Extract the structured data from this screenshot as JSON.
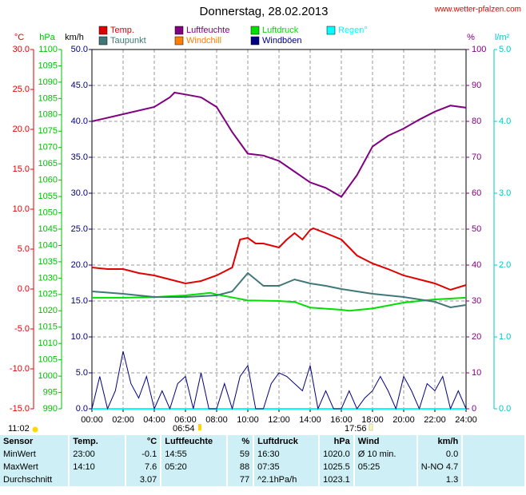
{
  "chart_data": {
    "type": "line",
    "title": "Donnerstag, 28.02.2013",
    "watermark": "www.wetter-pfalzen.com",
    "axes": [
      {
        "label": "°C",
        "color": "#e00000",
        "lim": [
          -15,
          30
        ],
        "ticks": [
          {
            "value": -15,
            "label": "-15.0"
          },
          {
            "value": -10,
            "label": "-10.0"
          },
          {
            "value": -5,
            "label": "-5.0"
          },
          {
            "value": 0,
            "label": "0.0"
          },
          {
            "value": 5,
            "label": "5.0"
          },
          {
            "value": 10,
            "label": "10.0"
          },
          {
            "value": 15,
            "label": "15.0"
          },
          {
            "value": 20,
            "label": "20.0"
          },
          {
            "value": 25,
            "label": "25.0"
          },
          {
            "value": 30,
            "label": "30.0"
          }
        ]
      },
      {
        "label": "hPa",
        "color": "#00c000",
        "lim": [
          990,
          1100
        ],
        "ticks": [
          990,
          995,
          1000,
          1005,
          1010,
          1015,
          1020,
          1025,
          1030,
          1035,
          1040,
          1045,
          1050,
          1055,
          1060,
          1065,
          1070,
          1075,
          1080,
          1085,
          1090,
          1095,
          1100
        ]
      },
      {
        "label": "km/h",
        "color": "#000080",
        "lim": [
          0,
          50
        ],
        "ticks": [
          {
            "value": 0,
            "label": "0.0"
          },
          {
            "value": 5,
            "label": "5.0"
          },
          {
            "value": 10,
            "label": "10.0"
          },
          {
            "value": 15,
            "label": "15.0"
          },
          {
            "value": 20,
            "label": "20.0"
          },
          {
            "value": 25,
            "label": "25.0"
          },
          {
            "value": 30,
            "label": "30.0"
          },
          {
            "value": 35,
            "label": "35.0"
          },
          {
            "value": 40,
            "label": "40.0"
          },
          {
            "value": 45,
            "label": "45.0"
          },
          {
            "value": 50,
            "label": "50.0"
          }
        ]
      },
      {
        "label": "%",
        "color": "#800080",
        "lim": [
          0,
          100
        ],
        "ticks": [
          0,
          10,
          20,
          30,
          40,
          50,
          60,
          70,
          80,
          90,
          100
        ]
      },
      {
        "label": "l/m²",
        "color": "#00c8c8",
        "lim": [
          0,
          5
        ],
        "ticks": [
          {
            "value": 0,
            "label": "0.0"
          },
          {
            "value": 1,
            "label": "1.0"
          },
          {
            "value": 2,
            "label": "2.0"
          },
          {
            "value": 3,
            "label": "3.0"
          },
          {
            "value": 4,
            "label": "4.0"
          },
          {
            "value": 5,
            "label": "5.0"
          }
        ]
      }
    ],
    "xlim": [
      0,
      24
    ],
    "xticks": [
      {
        "value": 0,
        "label": "00:00"
      },
      {
        "value": 2,
        "label": "02:00"
      },
      {
        "value": 4,
        "label": "04:00"
      },
      {
        "value": 6,
        "label": "06:00"
      },
      {
        "value": 8,
        "label": "08:00"
      },
      {
        "value": 10,
        "label": "10:00"
      },
      {
        "value": 12,
        "label": "12:00"
      },
      {
        "value": 14,
        "label": "14:00"
      },
      {
        "value": 16,
        "label": "16:00"
      },
      {
        "value": 18,
        "label": "18:00"
      },
      {
        "value": 20,
        "label": "20:00"
      },
      {
        "value": 22,
        "label": "22:00"
      },
      {
        "value": 24,
        "label": "24:00"
      }
    ],
    "grid": true,
    "series": [
      {
        "name": "Temp.",
        "color": "#e00000",
        "axis": "°C",
        "x": [
          0,
          1,
          2,
          3,
          4,
          5,
          6,
          7,
          8,
          9,
          9.5,
          10,
          10.5,
          11,
          12,
          12.5,
          13,
          13.5,
          14,
          14.2,
          15,
          16,
          17,
          18,
          19,
          20,
          21,
          22,
          23,
          24
        ],
        "values": [
          2.7,
          2.5,
          2.5,
          2.0,
          1.7,
          1.2,
          0.7,
          1.0,
          1.7,
          2.7,
          6.2,
          6.4,
          5.7,
          5.7,
          5.2,
          6.2,
          7.0,
          6.2,
          7.4,
          7.6,
          7.0,
          6.2,
          4.2,
          3.2,
          2.5,
          1.7,
          1.2,
          0.7,
          -0.1,
          0.5
        ]
      },
      {
        "name": "Luftfeuchte",
        "color": "#800080",
        "axis": "%",
        "x": [
          0,
          2,
          4,
          5,
          5.3,
          6,
          7,
          8,
          9,
          10,
          11,
          12,
          13,
          14,
          15,
          16,
          17,
          18,
          19,
          20,
          21,
          22,
          23,
          24
        ],
        "values": [
          80,
          82,
          84,
          86.7,
          88,
          87.5,
          86.7,
          84,
          77,
          71,
          70.5,
          69,
          66,
          63,
          61.5,
          59,
          65,
          73,
          76,
          78,
          80.5,
          82.7,
          84.4,
          83.8
        ]
      },
      {
        "name": "Luftdruck",
        "color": "#00e000",
        "axis": "hPa",
        "x": [
          0,
          2,
          4,
          6,
          7.6,
          8,
          10,
          12,
          13,
          14,
          16,
          16.5,
          18,
          20,
          22,
          24
        ],
        "values": [
          1024,
          1024,
          1024.2,
          1024.7,
          1025.5,
          1025,
          1023.2,
          1023,
          1022.7,
          1021,
          1020.3,
          1020,
          1020.7,
          1022.5,
          1023.5,
          1024
        ]
      },
      {
        "name": "Regen°",
        "color": "#00ffff",
        "axis": "l/m²",
        "x": [
          0,
          24
        ],
        "values": [
          0,
          0
        ]
      },
      {
        "name": "Taupunkt",
        "color": "#407878",
        "axis": "°C",
        "x": [
          0,
          2,
          4,
          6,
          8,
          9,
          10,
          10.5,
          11,
          12,
          13,
          14,
          15,
          16,
          17,
          18,
          20,
          22,
          23,
          24
        ],
        "values": [
          -0.3,
          -0.6,
          -1.0,
          -1.0,
          -0.8,
          -0.3,
          2.0,
          1.2,
          0.4,
          0.4,
          1.2,
          0.7,
          0.4,
          0,
          -0.3,
          -0.6,
          -1.0,
          -1.6,
          -2.3,
          -2.0
        ]
      },
      {
        "name": "Windchill",
        "color": "#ff8000",
        "axis": "°C"
      },
      {
        "name": "Windböen",
        "color": "#000080",
        "axis": "km/h",
        "x": [
          0,
          0.5,
          1,
          1.5,
          2,
          2.5,
          3,
          3.5,
          4,
          4.5,
          5,
          5.5,
          6,
          6.5,
          7,
          7.5,
          8,
          8.5,
          9,
          9.5,
          10,
          10.5,
          11,
          11.5,
          12,
          12.5,
          13,
          13.5,
          14,
          14.5,
          15,
          15.5,
          16,
          16.5,
          17,
          17.5,
          18,
          18.5,
          19,
          19.5,
          20,
          20.5,
          21,
          21.5,
          22,
          22.5,
          23,
          23.5,
          24
        ],
        "values": [
          0,
          4.5,
          0,
          2.5,
          8,
          3.5,
          1.5,
          4.5,
          0,
          2.5,
          0,
          3.5,
          4.5,
          0,
          5,
          0,
          0,
          3.5,
          0,
          4.5,
          6,
          0,
          0,
          3.5,
          5,
          4.5,
          3.5,
          2.5,
          6,
          0,
          2.5,
          0,
          0,
          2.5,
          0,
          1.5,
          2.5,
          4.5,
          2.5,
          0,
          4.5,
          2.5,
          0,
          3.5,
          2.5,
          4.5,
          0,
          2.5,
          0
        ]
      }
    ]
  },
  "sun": {
    "daylength": "11:02",
    "sunrise": "06:54",
    "sunset": "17:56"
  },
  "table": {
    "header": [
      "Sensor",
      "Temp.",
      "°C",
      "Luftfeuchte",
      "%",
      "Luftdruck",
      "hPa",
      "Wind",
      "km/h"
    ],
    "rows": [
      [
        "MinWert",
        "23:00",
        "-0.1",
        "14:55",
        "59",
        "16:30",
        "1020.0",
        "Ø 10 min.",
        "0.0"
      ],
      [
        "MaxWert",
        "14:10",
        "7.6",
        "05:20",
        "88",
        "07:35",
        "1025.5",
        "05:25",
        "N-NO 4.7"
      ],
      [
        "Durchschnitt",
        null,
        "3.07",
        null,
        "77",
        "^2.1hPa/h",
        "1023.1",
        null,
        "1.3"
      ]
    ]
  }
}
